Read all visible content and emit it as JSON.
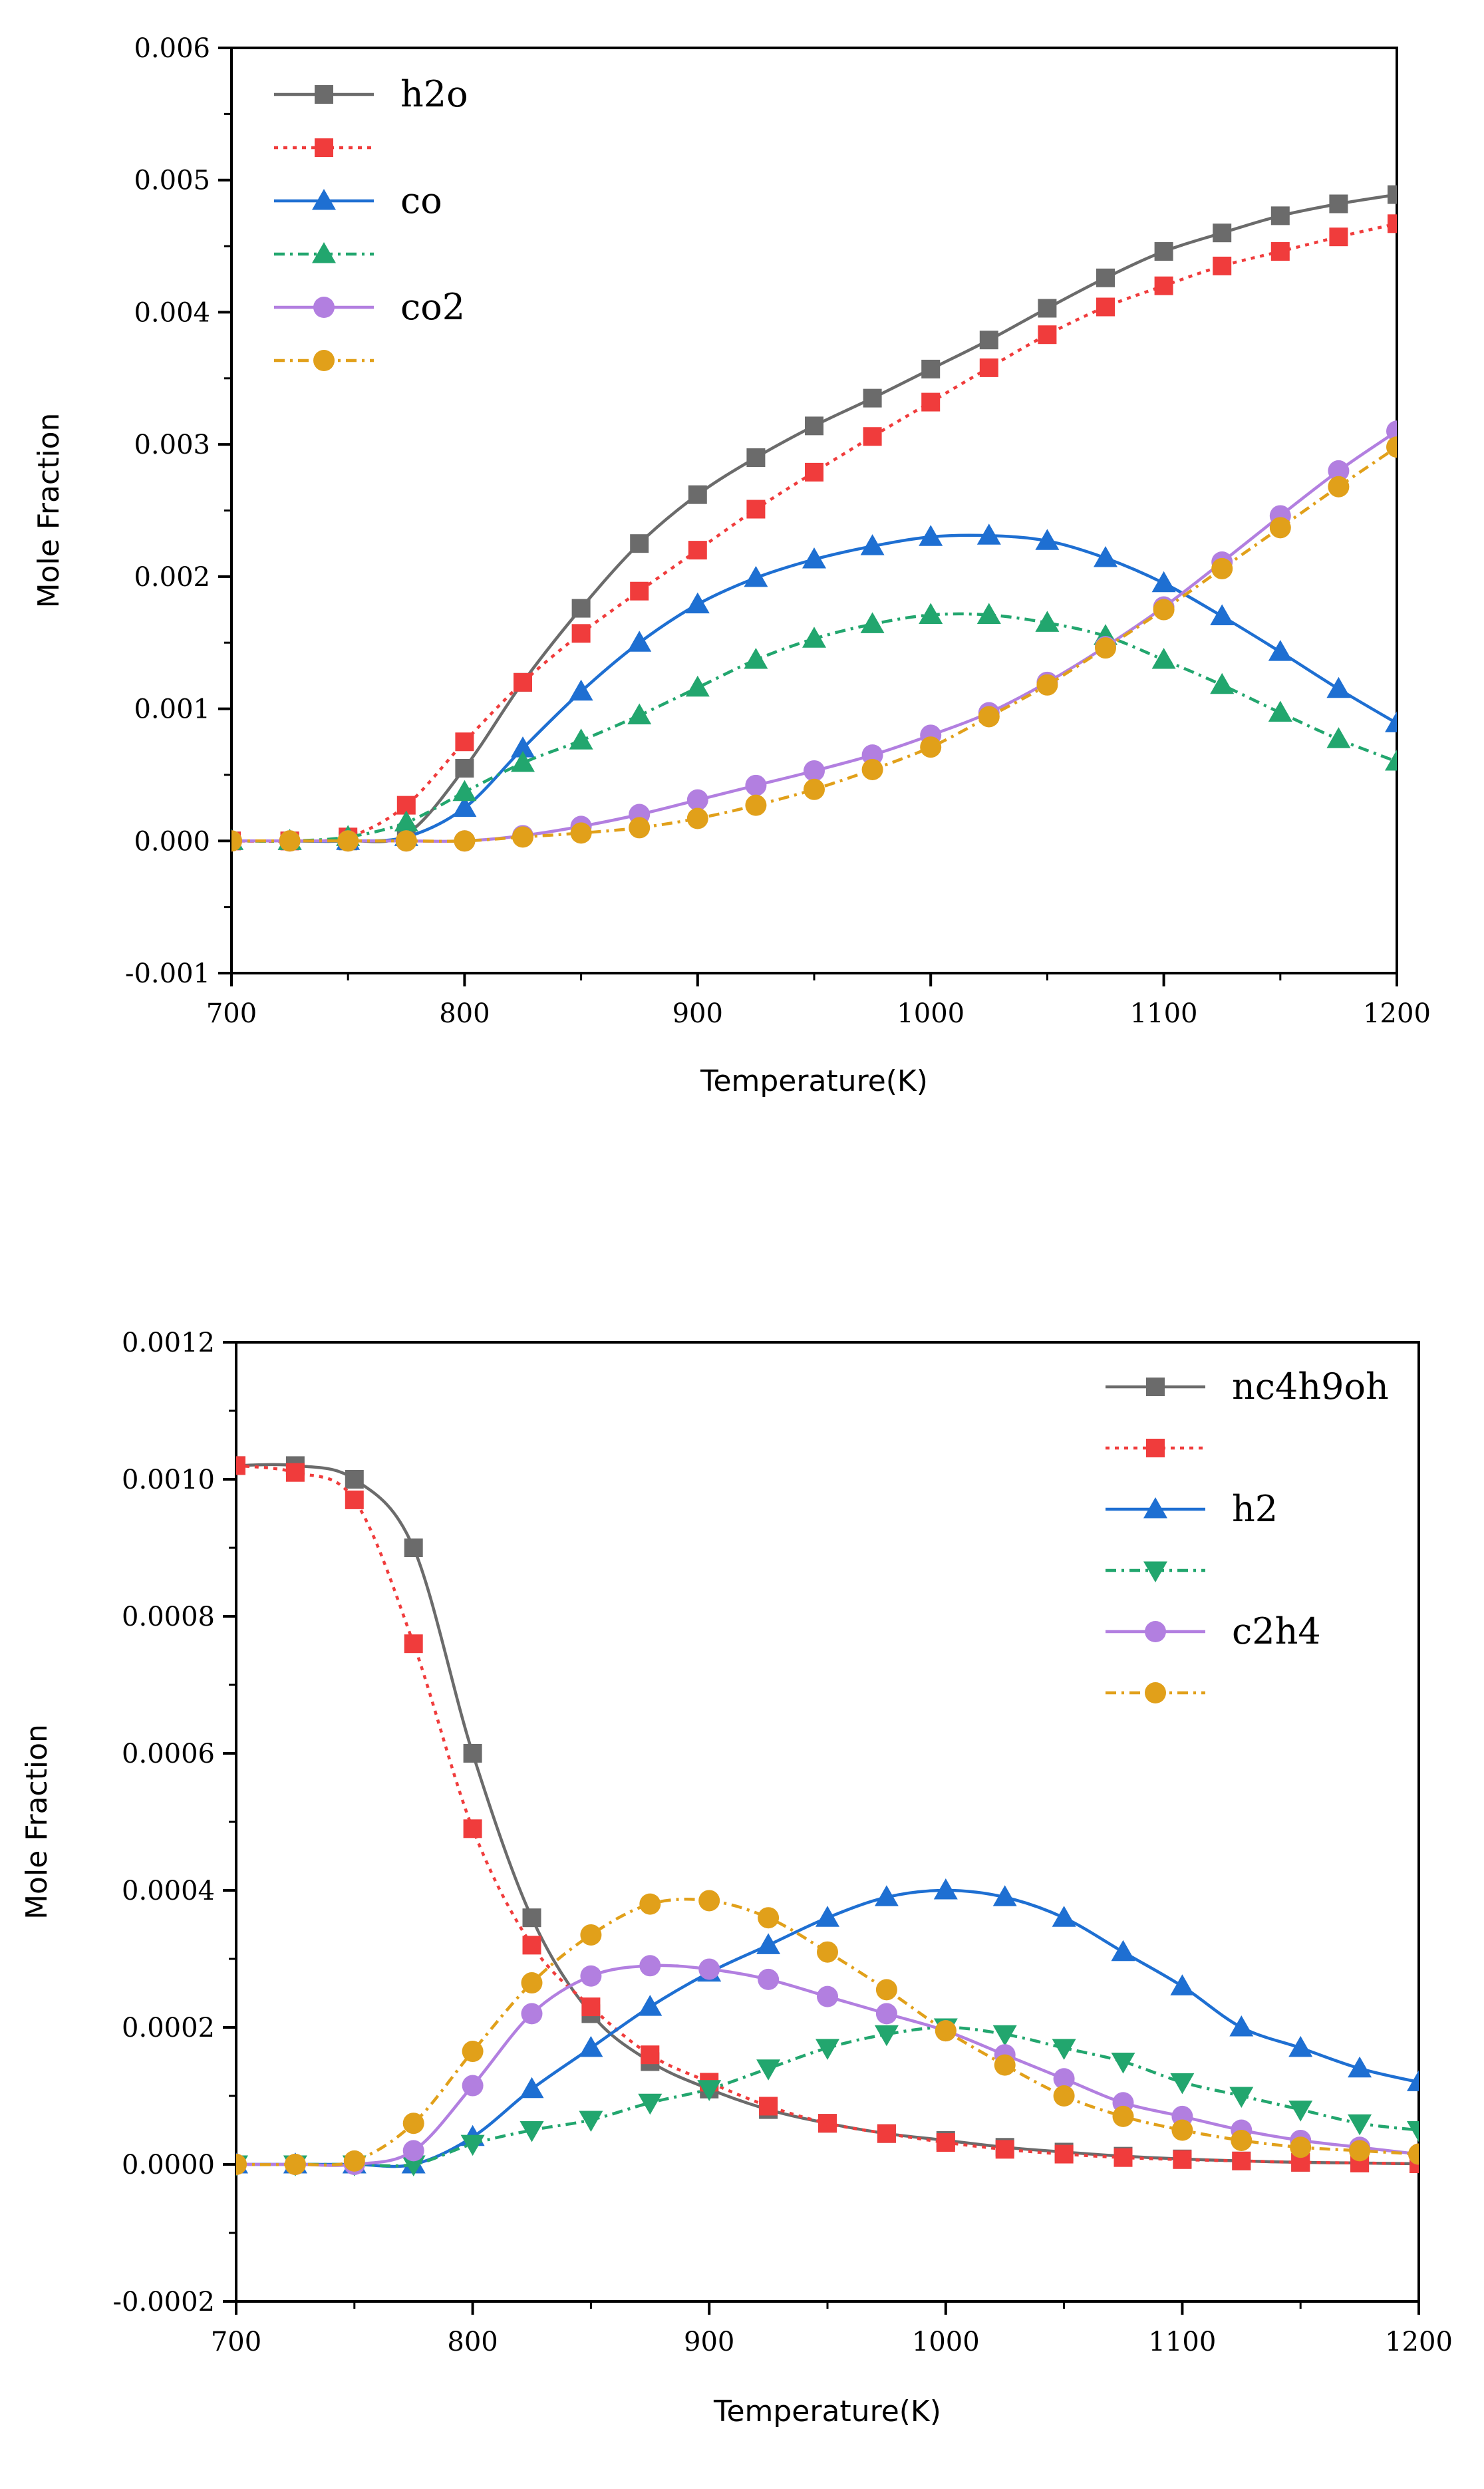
{
  "chart_data": [
    {
      "type": "line",
      "xlabel": "Temperature(K)",
      "ylabel": "Mole Fraction",
      "xlim": [
        700,
        1200
      ],
      "ylim": [
        -0.001,
        0.006
      ],
      "x_ticks": [
        "700",
        "800",
        "900",
        "1000",
        "1100",
        "1200"
      ],
      "y_ticks": [
        "-0.001",
        "0.000",
        "0.001",
        "0.002",
        "0.003",
        "0.004",
        "0.005",
        "0.006"
      ],
      "legend_position": "top-left",
      "grid": false,
      "x": [
        700,
        725,
        750,
        775,
        800,
        825,
        850,
        875,
        900,
        925,
        950,
        975,
        1000,
        1025,
        1050,
        1075,
        1100,
        1125,
        1150,
        1175,
        1200
      ],
      "series": [
        {
          "name": "h2o",
          "color": "#6b6b6b",
          "marker": "square",
          "dash": "solid",
          "values": [
            0,
            0,
            0,
            5e-05,
            0.00055,
            0.0012,
            0.00176,
            0.00225,
            0.00262,
            0.0029,
            0.00314,
            0.00335,
            0.00357,
            0.00379,
            0.00403,
            0.00426,
            0.00446,
            0.0046,
            0.00473,
            0.00482,
            0.00489
          ]
        },
        {
          "name": "",
          "color": "#f03c3c",
          "marker": "square",
          "dash": "dotted",
          "values": [
            0,
            0,
            3e-05,
            0.00027,
            0.00075,
            0.0012,
            0.00157,
            0.00189,
            0.0022,
            0.00251,
            0.00279,
            0.00306,
            0.00332,
            0.00358,
            0.00383,
            0.00404,
            0.0042,
            0.00435,
            0.00446,
            0.00457,
            0.00467
          ]
        },
        {
          "name": "co",
          "color": "#1e6fd2",
          "marker": "triangle-up",
          "dash": "solid",
          "values": [
            0,
            0,
            0,
            3e-05,
            0.00025,
            0.0007,
            0.00113,
            0.0015,
            0.00179,
            0.00199,
            0.00213,
            0.00223,
            0.0023,
            0.00231,
            0.00227,
            0.00214,
            0.00195,
            0.0017,
            0.00143,
            0.00115,
            0.00089
          ]
        },
        {
          "name": "",
          "color": "#22a66e",
          "marker": "triangle-up",
          "dash": "dashdot",
          "values": [
            0,
            0,
            3e-05,
            0.00014,
            0.00037,
            0.00059,
            0.00076,
            0.00095,
            0.00116,
            0.00137,
            0.00153,
            0.00164,
            0.00171,
            0.00171,
            0.00165,
            0.00155,
            0.00137,
            0.00118,
            0.00097,
            0.00077,
            0.0006
          ]
        },
        {
          "name": "co2",
          "color": "#b27fe0",
          "marker": "circle",
          "dash": "solid",
          "values": [
            0,
            0,
            0,
            0,
            0,
            4e-05,
            0.00011,
            0.0002,
            0.00031,
            0.00042,
            0.00053,
            0.00065,
            0.0008,
            0.00097,
            0.0012,
            0.00147,
            0.00177,
            0.00211,
            0.00246,
            0.0028,
            0.0031
          ]
        },
        {
          "name": "",
          "color": "#e1a01a",
          "marker": "circle",
          "dash": "dashdot",
          "values": [
            0,
            0,
            0,
            0,
            0,
            3e-05,
            6e-05,
            0.0001,
            0.00017,
            0.00027,
            0.00039,
            0.00054,
            0.00071,
            0.00094,
            0.00118,
            0.00146,
            0.00175,
            0.00206,
            0.00237,
            0.00268,
            0.00298
          ]
        }
      ]
    },
    {
      "type": "line",
      "xlabel": "Temperature(K)",
      "ylabel": "Mole Fraction",
      "xlim": [
        700,
        1200
      ],
      "ylim": [
        -0.0002,
        0.0012
      ],
      "x_ticks": [
        "700",
        "800",
        "900",
        "1000",
        "1100",
        "1200"
      ],
      "y_ticks": [
        "-0.0002",
        "0.0000",
        "0.0002",
        "0.0004",
        "0.0006",
        "0.0008",
        "0.0010",
        "0.0012"
      ],
      "legend_position": "top-right",
      "grid": false,
      "x": [
        700,
        725,
        750,
        775,
        800,
        825,
        850,
        875,
        900,
        925,
        950,
        975,
        1000,
        1025,
        1050,
        1075,
        1100,
        1125,
        1150,
        1175,
        1200
      ],
      "series": [
        {
          "name": "nc4h9oh",
          "color": "#6b6b6b",
          "marker": "square",
          "dash": "solid",
          "values": [
            0.00102,
            0.00102,
            0.001,
            0.0009,
            0.0006,
            0.00036,
            0.00022,
            0.00015,
            0.00011,
            8e-05,
            6e-05,
            4.5e-05,
            3.5e-05,
            2.5e-05,
            1.8e-05,
            1.2e-05,
            8e-06,
            5e-06,
            3e-06,
            2e-06,
            1e-06
          ]
        },
        {
          "name": "",
          "color": "#f03c3c",
          "marker": "square",
          "dash": "dotted",
          "values": [
            0.00102,
            0.00101,
            0.00097,
            0.00076,
            0.00049,
            0.00032,
            0.00023,
            0.00016,
            0.00012,
            8.5e-05,
            6e-05,
            4.5e-05,
            3.2e-05,
            2.2e-05,
            1.5e-05,
            1e-05,
            7e-06,
            5e-06,
            3e-06,
            2e-06,
            1e-06
          ]
        },
        {
          "name": "h2",
          "color": "#1e6fd2",
          "marker": "triangle-up",
          "dash": "solid",
          "values": [
            0,
            0,
            0,
            0,
            4e-05,
            0.00011,
            0.00017,
            0.00023,
            0.00028,
            0.00032,
            0.00036,
            0.00039,
            0.0004,
            0.00039,
            0.00036,
            0.00031,
            0.00026,
            0.0002,
            0.00017,
            0.00014,
            0.00012
          ]
        },
        {
          "name": "",
          "color": "#22a66e",
          "marker": "triangle-down",
          "dash": "dashdot",
          "values": [
            0,
            0,
            0,
            0,
            3e-05,
            5e-05,
            6.5e-05,
            9e-05,
            0.00011,
            0.00014,
            0.00017,
            0.00019,
            0.0002,
            0.00019,
            0.00017,
            0.00015,
            0.00012,
            0.0001,
            8e-05,
            6e-05,
            5e-05
          ]
        },
        {
          "name": "c2h4",
          "color": "#b27fe0",
          "marker": "circle",
          "dash": "solid",
          "values": [
            0,
            0,
            0,
            2e-05,
            0.000115,
            0.00022,
            0.000275,
            0.00029,
            0.000285,
            0.00027,
            0.000245,
            0.00022,
            0.000195,
            0.00016,
            0.000125,
            9e-05,
            7e-05,
            5e-05,
            3.5e-05,
            2.5e-05,
            1.5e-05
          ]
        },
        {
          "name": "",
          "color": "#e1a01a",
          "marker": "circle",
          "dash": "dashdot",
          "values": [
            0,
            0,
            5e-06,
            6e-05,
            0.000165,
            0.000265,
            0.000335,
            0.00038,
            0.000385,
            0.00036,
            0.00031,
            0.000255,
            0.000195,
            0.000145,
            0.0001,
            7e-05,
            5e-05,
            3.5e-05,
            2.5e-05,
            2e-05,
            1.5e-05
          ]
        }
      ]
    }
  ]
}
